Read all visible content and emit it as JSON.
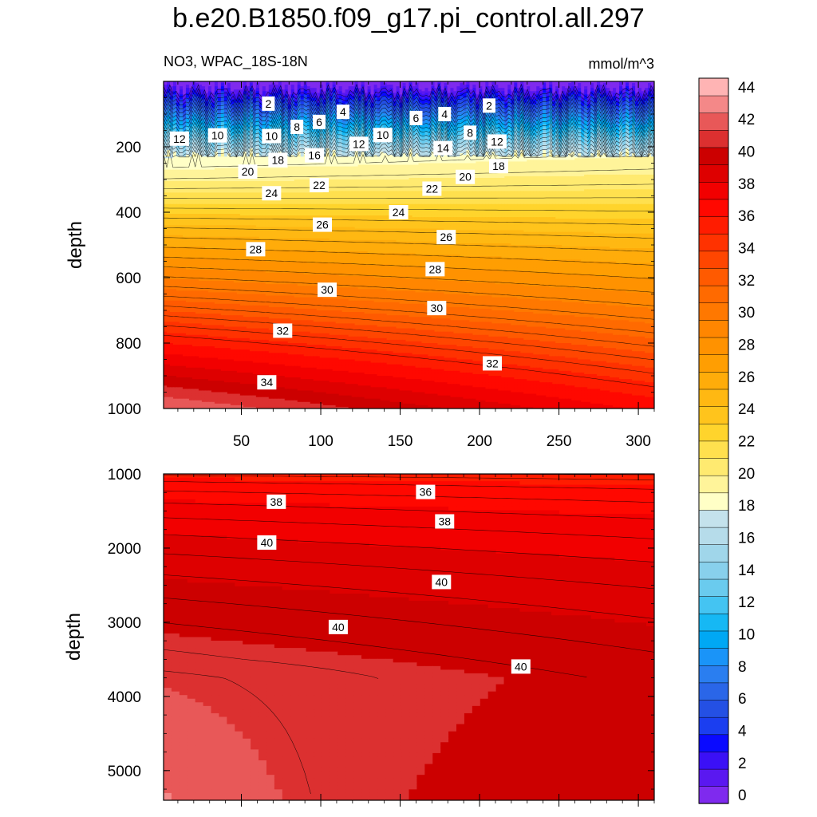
{
  "title": "b.e20.B1850.f09_g17.pi_control.all.297",
  "chart_data": {
    "type": "heatmap",
    "variable_label": "NO3, WPAC_18S-18N",
    "units": "mmol/m^3",
    "ylabel": "depth",
    "colormap": "BlAqGrYeOrReVi200",
    "colorbar": {
      "levels": [
        0,
        2,
        4,
        6,
        8,
        10,
        12,
        14,
        16,
        18,
        20,
        22,
        24,
        26,
        28,
        30,
        32,
        34,
        36,
        38,
        40,
        42,
        44
      ],
      "bands": [
        "#7f2aee",
        "#5a18f0",
        "#3b10f6",
        "#0a0aff",
        "#1b3ef0",
        "#2450e4",
        "#2a66e8",
        "#2a7ef0",
        "#1a94f8",
        "#00a8f4",
        "#16b8f4",
        "#44c4f2",
        "#6acbee",
        "#88d0ec",
        "#a0d6ea",
        "#b6dcea",
        "#c4e2ec",
        "#ffffc6",
        "#fff49a",
        "#ffea70",
        "#ffe04e",
        "#ffd42c",
        "#ffc41c",
        "#ffb812",
        "#ffac0a",
        "#ff9e02",
        "#ff9200",
        "#ff8600",
        "#ff7800",
        "#ff6a00",
        "#ff5a00",
        "#ff4600",
        "#ff3200",
        "#ff1c00",
        "#ff0800",
        "#f20000",
        "#de0000",
        "#cc0000",
        "#dc3030",
        "#e85858",
        "#f48888",
        "#ffb4b4"
      ],
      "ticks": [
        0,
        2,
        4,
        6,
        8,
        10,
        12,
        14,
        16,
        18,
        20,
        22,
        24,
        26,
        28,
        30,
        32,
        34,
        36,
        38,
        40,
        42,
        44
      ]
    },
    "panels": [
      {
        "name": "upper",
        "x_ticks": [
          50,
          100,
          150,
          200,
          250,
          300
        ],
        "xlim": [
          1,
          310
        ],
        "y_ticks": [
          200,
          400,
          600,
          800,
          1000
        ],
        "ylim": [
          1000,
          0
        ],
        "contour_labels": [
          {
            "text": "2",
            "x": 67,
            "y": 68
          },
          {
            "text": "4",
            "x": 114,
            "y": 93
          },
          {
            "text": "6",
            "x": 99,
            "y": 124
          },
          {
            "text": "8",
            "x": 85,
            "y": 139
          },
          {
            "text": "10",
            "x": 35,
            "y": 165
          },
          {
            "text": "12",
            "x": 11,
            "y": 175
          },
          {
            "text": "10",
            "x": 69,
            "y": 167
          },
          {
            "text": "10",
            "x": 139,
            "y": 164
          },
          {
            "text": "6",
            "x": 160,
            "y": 112
          },
          {
            "text": "4",
            "x": 178,
            "y": 100
          },
          {
            "text": "2",
            "x": 206,
            "y": 74
          },
          {
            "text": "8",
            "x": 194,
            "y": 157
          },
          {
            "text": "12",
            "x": 124,
            "y": 191
          },
          {
            "text": "12",
            "x": 211,
            "y": 184
          },
          {
            "text": "14",
            "x": 177,
            "y": 204
          },
          {
            "text": "16",
            "x": 96,
            "y": 226
          },
          {
            "text": "18",
            "x": 73,
            "y": 240
          },
          {
            "text": "18",
            "x": 212,
            "y": 259
          },
          {
            "text": "20",
            "x": 54,
            "y": 276
          },
          {
            "text": "20",
            "x": 191,
            "y": 292
          },
          {
            "text": "22",
            "x": 99,
            "y": 317
          },
          {
            "text": "22",
            "x": 170,
            "y": 328
          },
          {
            "text": "24",
            "x": 69,
            "y": 342
          },
          {
            "text": "24",
            "x": 149,
            "y": 400
          },
          {
            "text": "26",
            "x": 101,
            "y": 438
          },
          {
            "text": "26",
            "x": 179,
            "y": 476
          },
          {
            "text": "28",
            "x": 59,
            "y": 513
          },
          {
            "text": "28",
            "x": 172,
            "y": 574
          },
          {
            "text": "30",
            "x": 104,
            "y": 637
          },
          {
            "text": "30",
            "x": 173,
            "y": 693
          },
          {
            "text": "32",
            "x": 76,
            "y": 762
          },
          {
            "text": "32",
            "x": 208,
            "y": 862
          },
          {
            "text": "34",
            "x": 66,
            "y": 920
          }
        ]
      },
      {
        "name": "lower",
        "xlim": [
          1,
          310
        ],
        "y_ticks": [
          1000,
          2000,
          3000,
          4000,
          5000
        ],
        "ylim": [
          5400,
          1000
        ],
        "contour_labels": [
          {
            "text": "36",
            "x": 166,
            "y": 1243
          },
          {
            "text": "38",
            "x": 72,
            "y": 1375
          },
          {
            "text": "38",
            "x": 178,
            "y": 1640
          },
          {
            "text": "40",
            "x": 66,
            "y": 1925
          },
          {
            "text": "40",
            "x": 176,
            "y": 2457
          },
          {
            "text": "40",
            "x": 111,
            "y": 3064
          },
          {
            "text": "40",
            "x": 226,
            "y": 3597
          }
        ]
      }
    ]
  }
}
